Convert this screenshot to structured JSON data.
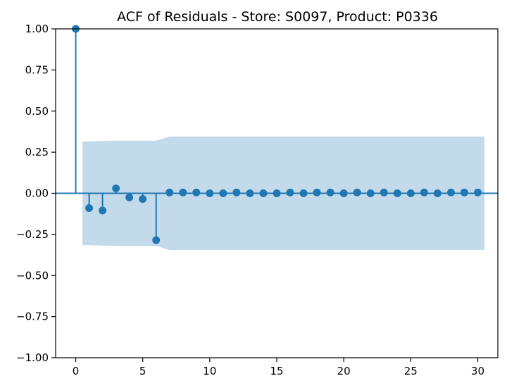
{
  "chart_data": {
    "type": "stem",
    "title": "ACF of Residuals - Store: S0097, Product: P0336",
    "xlabel": "",
    "ylabel": "",
    "xlim": [
      -1.5,
      31.5
    ],
    "ylim": [
      -1.0,
      1.0
    ],
    "x_ticks": [
      0,
      5,
      10,
      15,
      20,
      25,
      30
    ],
    "x_tick_labels": [
      "0",
      "5",
      "10",
      "15",
      "20",
      "25",
      "30"
    ],
    "y_ticks": [
      -1.0,
      -0.75,
      -0.5,
      -0.25,
      0.0,
      0.25,
      0.5,
      0.75,
      1.0
    ],
    "y_tick_labels": [
      "−1.00",
      "−0.75",
      "−0.50",
      "−0.25",
      "0.00",
      "0.25",
      "0.50",
      "0.75",
      "1.00"
    ],
    "grid": false,
    "legend": "none",
    "colors": {
      "marker": "#1f77b4",
      "band": "#c0d8ea"
    },
    "series": [
      {
        "x": [
          0,
          1,
          2,
          3,
          4,
          5,
          6,
          7,
          8,
          9,
          10,
          11,
          12,
          13,
          14,
          15,
          16,
          17,
          18,
          19,
          20,
          21,
          22,
          23,
          24,
          25,
          26,
          27,
          28,
          29,
          30
        ],
        "values": [
          1.0,
          -0.09,
          -0.105,
          0.03,
          -0.025,
          -0.035,
          -0.285,
          0.005,
          0.005,
          0.005,
          0.0,
          0.0,
          0.005,
          0.0,
          0.0,
          0.0,
          0.005,
          0.0,
          0.005,
          0.005,
          0.0,
          0.005,
          0.0,
          0.005,
          0.0,
          0.0,
          0.005,
          0.0,
          0.005,
          0.005,
          0.005
        ]
      }
    ],
    "confidence_band": {
      "x": [
        0.5,
        1,
        2,
        3,
        4,
        5,
        6,
        7,
        8,
        9,
        10,
        11,
        12,
        13,
        14,
        15,
        16,
        17,
        18,
        19,
        20,
        21,
        22,
        23,
        24,
        25,
        26,
        27,
        28,
        29,
        30,
        30.5
      ],
      "upper": [
        0.315,
        0.315,
        0.318,
        0.32,
        0.32,
        0.32,
        0.32,
        0.345,
        0.345,
        0.345,
        0.345,
        0.345,
        0.345,
        0.345,
        0.345,
        0.345,
        0.345,
        0.345,
        0.345,
        0.345,
        0.345,
        0.345,
        0.345,
        0.345,
        0.345,
        0.345,
        0.345,
        0.345,
        0.345,
        0.345,
        0.345,
        0.345
      ]
    }
  }
}
